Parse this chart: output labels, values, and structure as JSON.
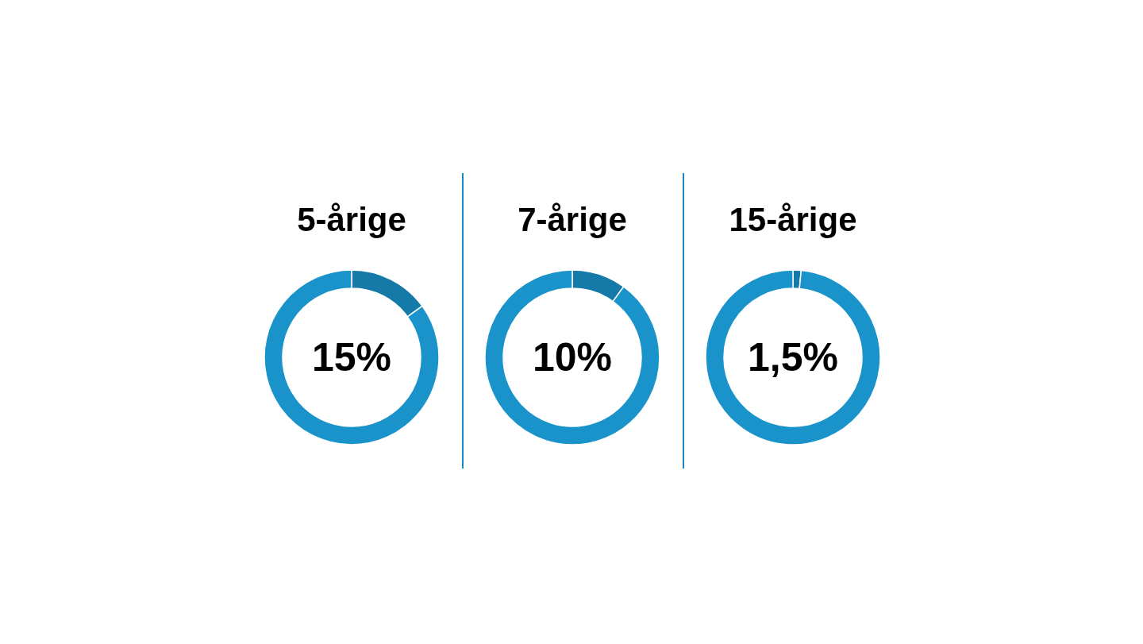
{
  "chart_data": [
    {
      "type": "donut",
      "title": "5-årige",
      "categories": [
        null,
        null
      ],
      "values": [
        15,
        85
      ],
      "colors": [
        "#157aa8",
        "#1a93cb"
      ],
      "annotations": [
        "15%"
      ]
    },
    {
      "type": "donut",
      "title": "7-årige",
      "categories": [
        null,
        null
      ],
      "values": [
        10,
        90
      ],
      "colors": [
        "#157aa8",
        "#1a93cb"
      ],
      "annotations": [
        "10%"
      ]
    },
    {
      "type": "donut",
      "title": "15-årige",
      "categories": [
        null,
        null
      ],
      "values": [
        1.5,
        98.5
      ],
      "colors": [
        "#157aa8",
        "#1a93cb"
      ],
      "annotations": [
        "1,5%"
      ]
    }
  ]
}
